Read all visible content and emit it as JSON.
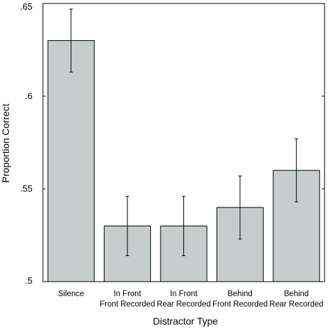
{
  "chart_data": {
    "type": "bar",
    "title": "",
    "xlabel": "Distractor Type",
    "ylabel": "Proportion Correct",
    "ylim": [
      0.5,
      0.65
    ],
    "yticks": [
      0.5,
      0.55,
      0.6,
      0.65
    ],
    "ytick_labels": [
      ".5",
      ".55",
      ".6",
      ".65"
    ],
    "categories": [
      [
        "Silence"
      ],
      [
        "In Front",
        "Front Recorded"
      ],
      [
        "In Front",
        "Rear Recorded"
      ],
      [
        "Behind",
        "Front Recorded"
      ],
      [
        "Behind",
        "Rear Recorded"
      ]
    ],
    "values": [
      0.63,
      0.53,
      0.53,
      0.54,
      0.56
    ],
    "error_low": [
      0.613,
      0.514,
      0.514,
      0.523,
      0.543
    ],
    "error_high": [
      0.647,
      0.546,
      0.546,
      0.557,
      0.577
    ],
    "bar_color": "#c6cdcd",
    "bar_edge_color": "#000000",
    "grid": false,
    "legend": "none"
  }
}
